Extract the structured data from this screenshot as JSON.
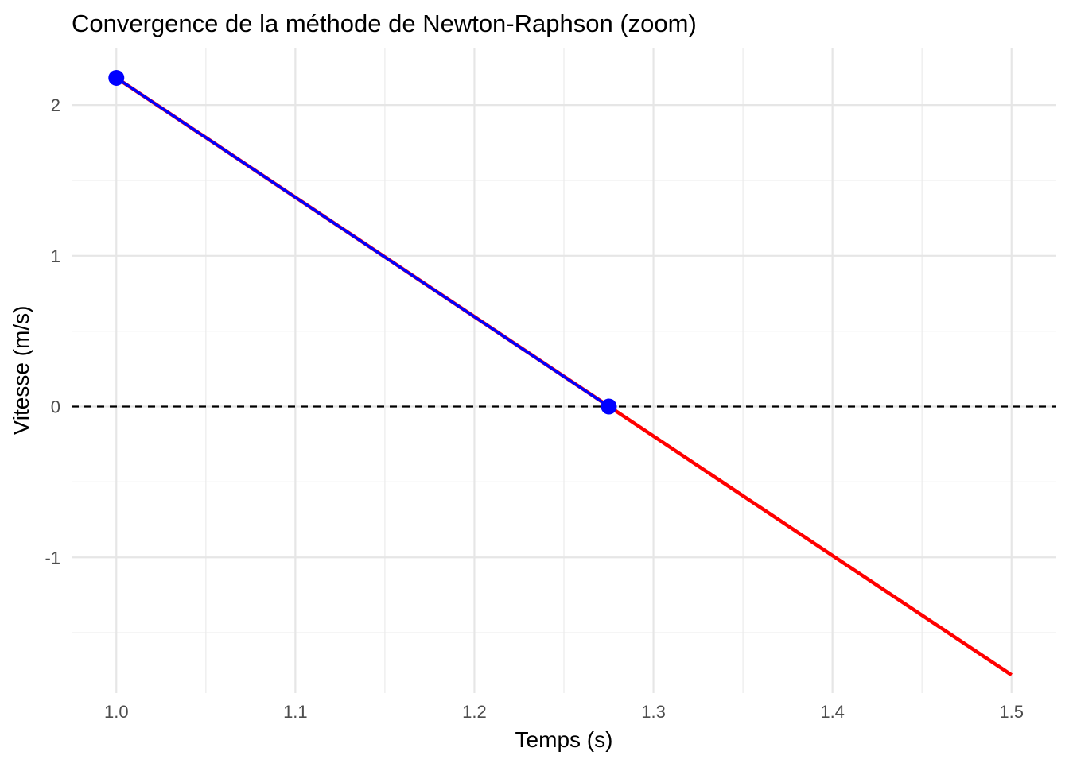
{
  "chart_data": {
    "type": "line",
    "title": "Convergence de la méthode de Newton-Raphson (zoom)",
    "xlabel": "Temps (s)",
    "ylabel": "Vitesse (m/s)",
    "xlim": [
      0.975,
      1.525
    ],
    "ylim": [
      -1.9,
      2.38
    ],
    "x_ticks": [
      1.0,
      1.1,
      1.2,
      1.3,
      1.4,
      1.5
    ],
    "x_tick_labels": [
      "1.0",
      "1.1",
      "1.2",
      "1.3",
      "1.4",
      "1.5"
    ],
    "y_ticks": [
      2,
      1,
      0,
      -1
    ],
    "y_tick_labels": [
      "2",
      "1",
      "0",
      "-1"
    ],
    "x_minor_ticks": [
      1.05,
      1.15,
      1.25,
      1.35,
      1.45
    ],
    "y_minor_ticks": [
      1.5,
      0.5,
      -0.5,
      -1.5
    ],
    "grid": true,
    "series": [
      {
        "role": "function",
        "color": "#ff0000",
        "x": [
          1.0,
          1.5
        ],
        "y": [
          2.18,
          -1.78
        ]
      },
      {
        "role": "newton-iterations",
        "color": "#0000ff",
        "x": [
          1.0,
          1.2751
        ],
        "y": [
          2.18,
          0.0
        ]
      }
    ],
    "reference_line": {
      "y": 0,
      "style": "dashed",
      "color": "#000000"
    }
  }
}
